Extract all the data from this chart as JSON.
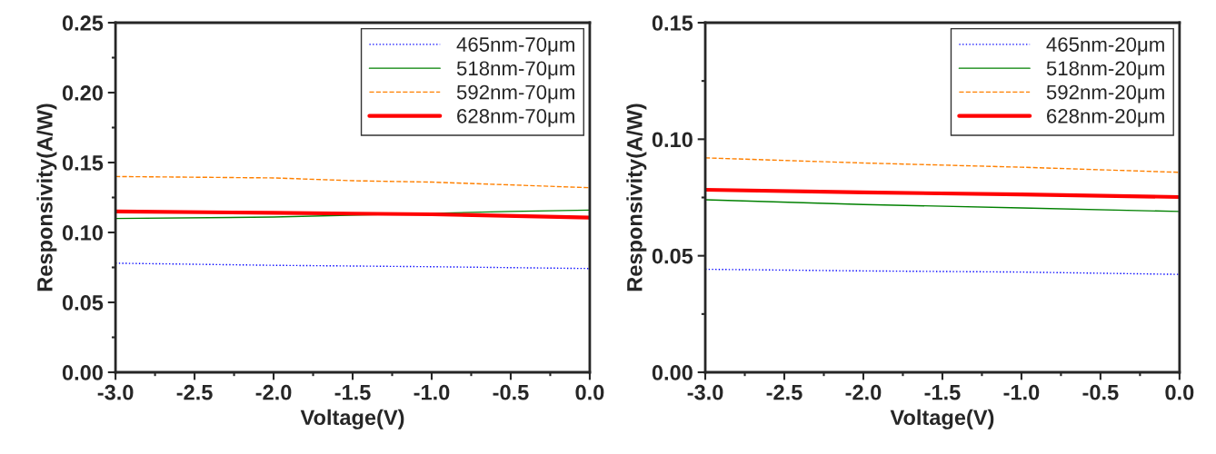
{
  "chart_data": [
    {
      "type": "line",
      "xlabel": "Voltage(V)",
      "ylabel": "Responsivity(A/W)",
      "x": [
        -3.0,
        -2.0,
        -1.5,
        -1.0,
        0.0
      ],
      "xlim": [
        -3.0,
        0.0
      ],
      "xticks": [
        {
          "value": -3.0,
          "label": "-3.0"
        },
        {
          "value": -2.5,
          "label": "-2.5"
        },
        {
          "value": -2.0,
          "label": "-2.0"
        },
        {
          "value": -1.5,
          "label": "-1.5"
        },
        {
          "value": -1.0,
          "label": "-1.0"
        },
        {
          "value": -0.5,
          "label": "-0.5"
        },
        {
          "value": 0.0,
          "label": "0.0"
        }
      ],
      "ylim": [
        0.0,
        0.25
      ],
      "yticks": [
        {
          "value": 0.0,
          "label": "0.00"
        },
        {
          "value": 0.05,
          "label": "0.05"
        },
        {
          "value": 0.1,
          "label": "0.10"
        },
        {
          "value": 0.15,
          "label": "0.15"
        },
        {
          "value": 0.2,
          "label": "0.20"
        },
        {
          "value": 0.25,
          "label": "0.25"
        }
      ],
      "grid": false,
      "legend": "top right",
      "series": [
        {
          "name": "465nm-70μm",
          "color": "#0000ff",
          "line_style": "dotted",
          "values": [
            0.078,
            0.0765,
            0.076,
            0.0755,
            0.0742
          ]
        },
        {
          "name": "518nm-70μm",
          "color": "#008000",
          "line_style": "solid",
          "x": [
            -3.0,
            -2.0,
            -0.5,
            0.0
          ],
          "values": [
            0.11,
            0.111,
            0.115,
            0.116
          ]
        },
        {
          "name": "592nm-70μm",
          "color": "#ff8000",
          "line_style": "dashed",
          "values": [
            0.14,
            0.139,
            0.137,
            0.136,
            0.132
          ]
        },
        {
          "name": "628nm-70μm",
          "color": "#ff0000",
          "line_style": "solid",
          "values": [
            0.115,
            0.114,
            0.1135,
            0.113,
            0.1106
          ]
        }
      ]
    },
    {
      "type": "line",
      "xlabel": "Voltage(V)",
      "ylabel": "Responsivity(A/W)",
      "x": [
        -3.0,
        -2.0,
        -1.0,
        0.0
      ],
      "xlim": [
        -3.0,
        0.0
      ],
      "xticks": [
        {
          "value": -3.0,
          "label": "-3.0"
        },
        {
          "value": -2.5,
          "label": "-2.5"
        },
        {
          "value": -2.0,
          "label": "-2.0"
        },
        {
          "value": -1.5,
          "label": "-1.5"
        },
        {
          "value": -1.0,
          "label": "-1.0"
        },
        {
          "value": -0.5,
          "label": "-0.5"
        },
        {
          "value": 0.0,
          "label": "0.0"
        }
      ],
      "ylim": [
        0.0,
        0.15
      ],
      "yticks": [
        {
          "value": 0.0,
          "label": "0.00"
        },
        {
          "value": 0.05,
          "label": "0.05"
        },
        {
          "value": 0.1,
          "label": "0.10"
        },
        {
          "value": 0.15,
          "label": "0.15"
        }
      ],
      "grid": false,
      "legend": "top right",
      "series": [
        {
          "name": "465nm-20μm",
          "color": "#0000ff",
          "line_style": "dotted",
          "values": [
            0.0442,
            0.0435,
            0.043,
            0.042
          ]
        },
        {
          "name": "518nm-20μm",
          "color": "#008000",
          "line_style": "solid",
          "values": [
            0.074,
            0.072,
            0.0705,
            0.069
          ]
        },
        {
          "name": "592nm-20μm",
          "color": "#ff8000",
          "line_style": "dashed",
          "values": [
            0.092,
            0.0898,
            0.088,
            0.0858
          ]
        },
        {
          "name": "628nm-20μm",
          "color": "#ff0000",
          "line_style": "solid",
          "values": [
            0.0783,
            0.0772,
            0.0763,
            0.0752
          ]
        }
      ]
    }
  ]
}
